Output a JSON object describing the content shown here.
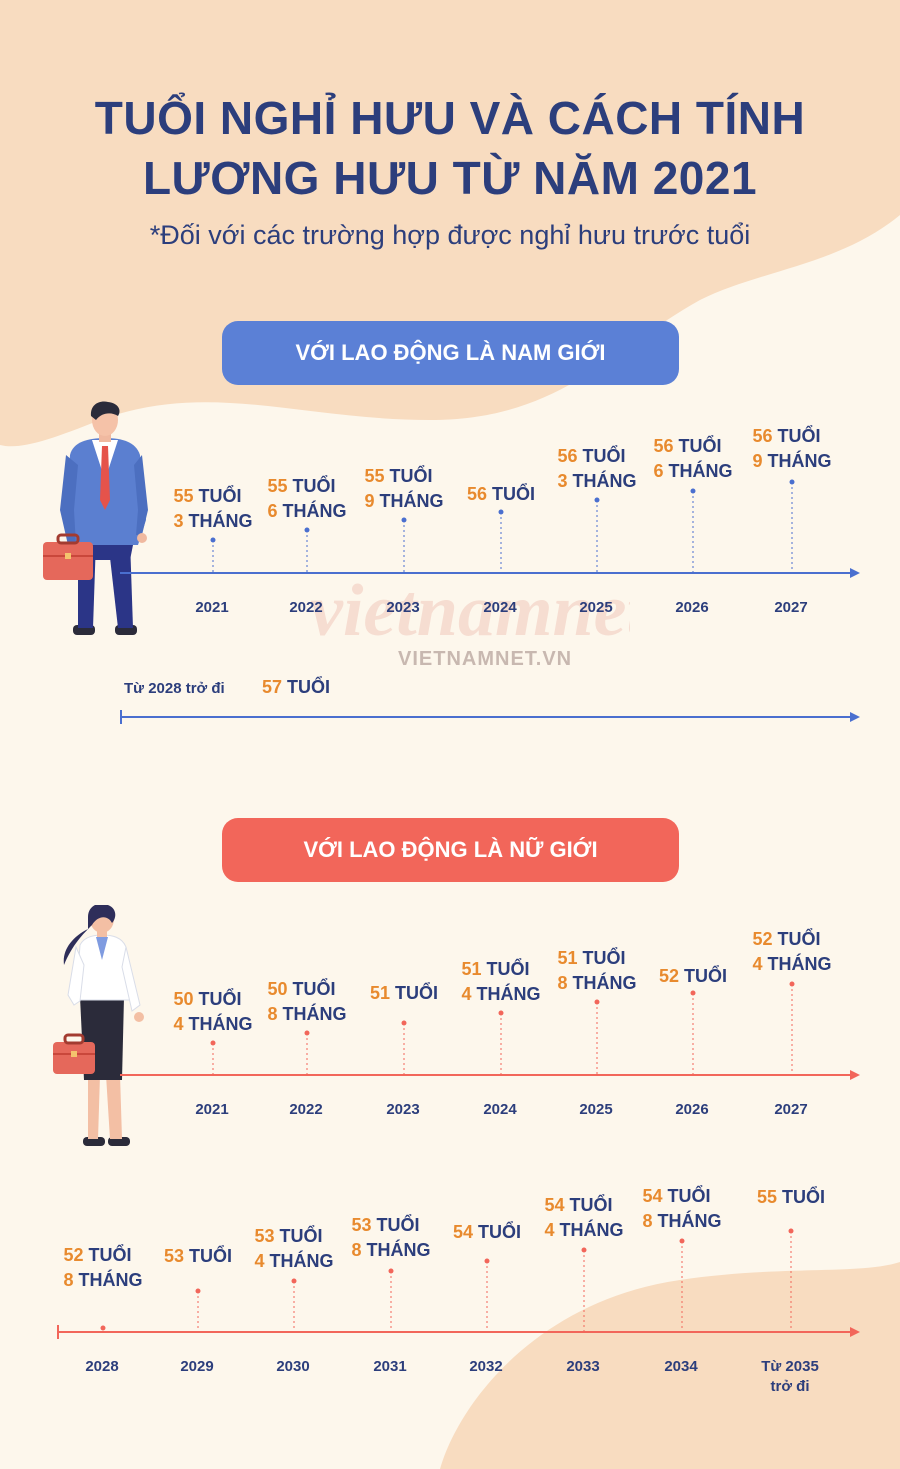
{
  "title_line1": "TUỔI NGHỈ HƯU VÀ CÁCH TÍNH",
  "title_line2": "LƯƠNG HƯU TỪ NĂM 2021",
  "subtitle": "*Đối với các trường hợp được nghỉ hưu trước tuổi",
  "male": {
    "banner": "VỚI LAO ĐỘNG LÀ NAM GIỚI",
    "items": [
      {
        "year": "2021",
        "age": "55",
        "age_unit": "TUỔI",
        "months": "3",
        "months_unit": "THÁNG"
      },
      {
        "year": "2022",
        "age": "55",
        "age_unit": "TUỔI",
        "months": "6",
        "months_unit": "THÁNG"
      },
      {
        "year": "2023",
        "age": "55",
        "age_unit": "TUỔI",
        "months": "9",
        "months_unit": "THÁNG"
      },
      {
        "year": "2024",
        "age": "56",
        "age_unit": "TUỔI",
        "months": "",
        "months_unit": ""
      },
      {
        "year": "2025",
        "age": "56",
        "age_unit": "TUỔI",
        "months": "3",
        "months_unit": "THÁNG"
      },
      {
        "year": "2026",
        "age": "56",
        "age_unit": "TUỔI",
        "months": "6",
        "months_unit": "THÁNG"
      },
      {
        "year": "2027",
        "age": "56",
        "age_unit": "TUỔI",
        "months": "9",
        "months_unit": "THÁNG"
      }
    ],
    "from_text": "Từ 2028 trở đi",
    "from_age": "57",
    "from_unit": "TUỔI"
  },
  "female": {
    "banner": "VỚI LAO ĐỘNG LÀ NỮ GIỚI",
    "items_row1": [
      {
        "year": "2021",
        "age": "50",
        "age_unit": "TUỔI",
        "months": "4",
        "months_unit": "THÁNG"
      },
      {
        "year": "2022",
        "age": "50",
        "age_unit": "TUỔI",
        "months": "8",
        "months_unit": "THÁNG"
      },
      {
        "year": "2023",
        "age": "51",
        "age_unit": "TUỔI",
        "months": "",
        "months_unit": ""
      },
      {
        "year": "2024",
        "age": "51",
        "age_unit": "TUỔI",
        "months": "4",
        "months_unit": "THÁNG"
      },
      {
        "year": "2025",
        "age": "51",
        "age_unit": "TUỔI",
        "months": "8",
        "months_unit": "THÁNG"
      },
      {
        "year": "2026",
        "age": "52",
        "age_unit": "TUỔI",
        "months": "",
        "months_unit": ""
      },
      {
        "year": "2027",
        "age": "52",
        "age_unit": "TUỔI",
        "months": "4",
        "months_unit": "THÁNG"
      }
    ],
    "items_row2": [
      {
        "year": "2028",
        "year2": "",
        "age": "52",
        "age_unit": "TUỔI",
        "months": "8",
        "months_unit": "THÁNG"
      },
      {
        "year": "2029",
        "year2": "",
        "age": "53",
        "age_unit": "TUỔI",
        "months": "",
        "months_unit": ""
      },
      {
        "year": "2030",
        "year2": "",
        "age": "53",
        "age_unit": "TUỔI",
        "months": "4",
        "months_unit": "THÁNG"
      },
      {
        "year": "2031",
        "year2": "",
        "age": "53",
        "age_unit": "TUỔI",
        "months": "8",
        "months_unit": "THÁNG"
      },
      {
        "year": "2032",
        "year2": "",
        "age": "54",
        "age_unit": "TUỔI",
        "months": "",
        "months_unit": ""
      },
      {
        "year": "2033",
        "year2": "",
        "age": "54",
        "age_unit": "TUỔI",
        "months": "4",
        "months_unit": "THÁNG"
      },
      {
        "year": "2034",
        "year2": "",
        "age": "54",
        "age_unit": "TUỔI",
        "months": "8",
        "months_unit": "THÁNG"
      },
      {
        "year": "Từ 2035",
        "year2": "trở đi",
        "age": "55",
        "age_unit": "TUỔI",
        "months": "",
        "months_unit": ""
      }
    ]
  },
  "watermark": "VIETNAMNET.VN",
  "watermark_logo": "vietnamnet",
  "colors": {
    "bg": "#fdf7ec",
    "blob": "#f7dcc0",
    "title": "#2c3e7c",
    "accent_orange": "#e88a2e",
    "male_line": "#4a6fcf",
    "female_line": "#f2665a",
    "male_banner": "#5b80d6",
    "female_banner": "#f2665a"
  }
}
